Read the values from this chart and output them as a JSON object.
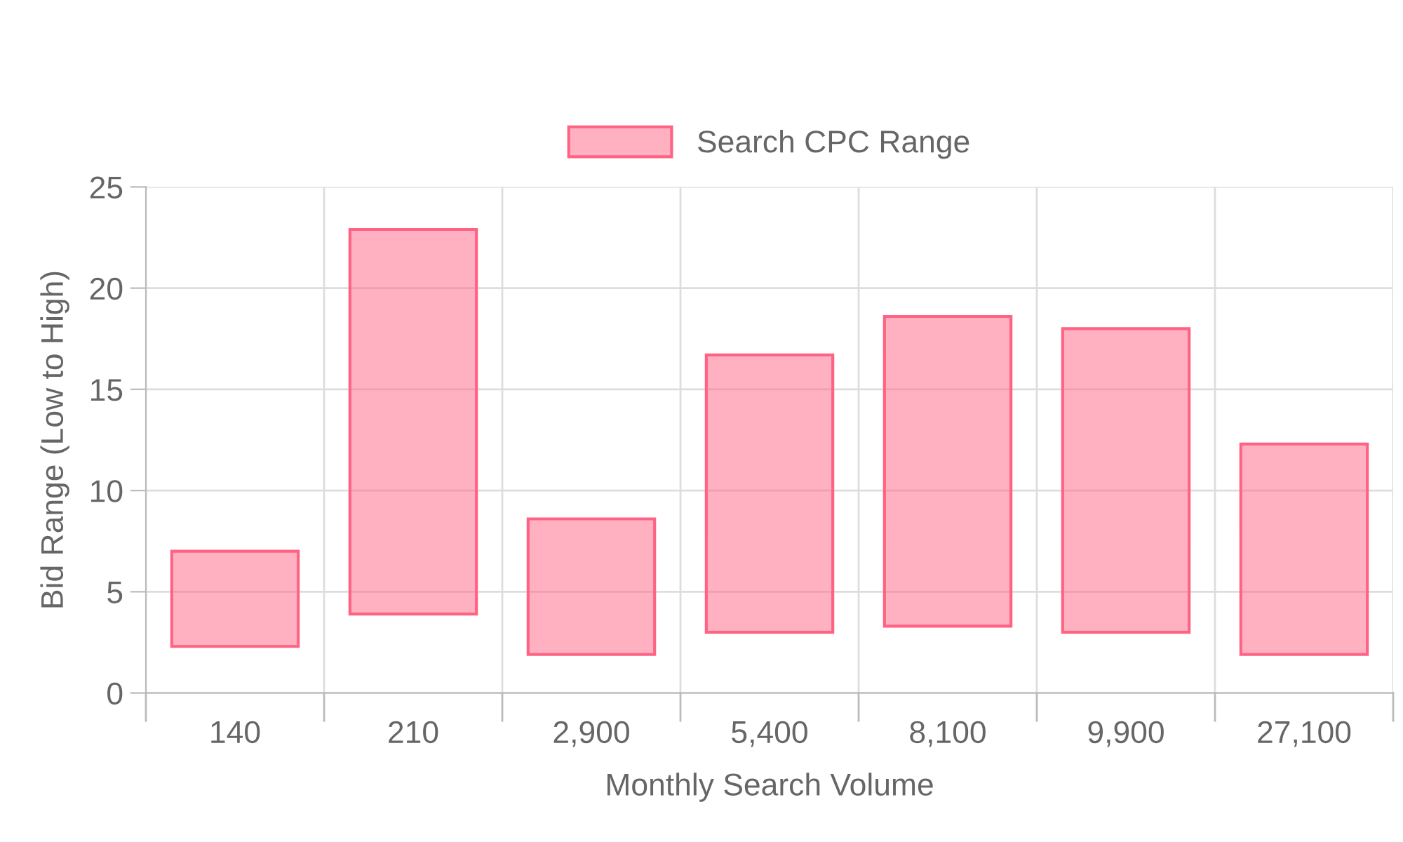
{
  "chart_data": {
    "type": "bar",
    "xlabel": "Monthly Search Volume",
    "ylabel": "Bid Range (Low to High)",
    "categories": [
      "140",
      "210",
      "2,900",
      "5,400",
      "8,100",
      "9,900",
      "27,100"
    ],
    "series": [
      {
        "name": "Search CPC Range",
        "color": "#ff6384",
        "base": [
          2.3,
          3.9,
          1.9,
          3.0,
          3.3,
          3.0,
          1.9
        ],
        "values": [
          4.7,
          19.0,
          6.7,
          13.7,
          15.3,
          15.0,
          10.4
        ]
      }
    ],
    "ylim": [
      0,
      25
    ],
    "yticks": [
      0,
      5,
      10,
      15,
      20,
      25
    ],
    "grid": true,
    "legend": "top"
  }
}
